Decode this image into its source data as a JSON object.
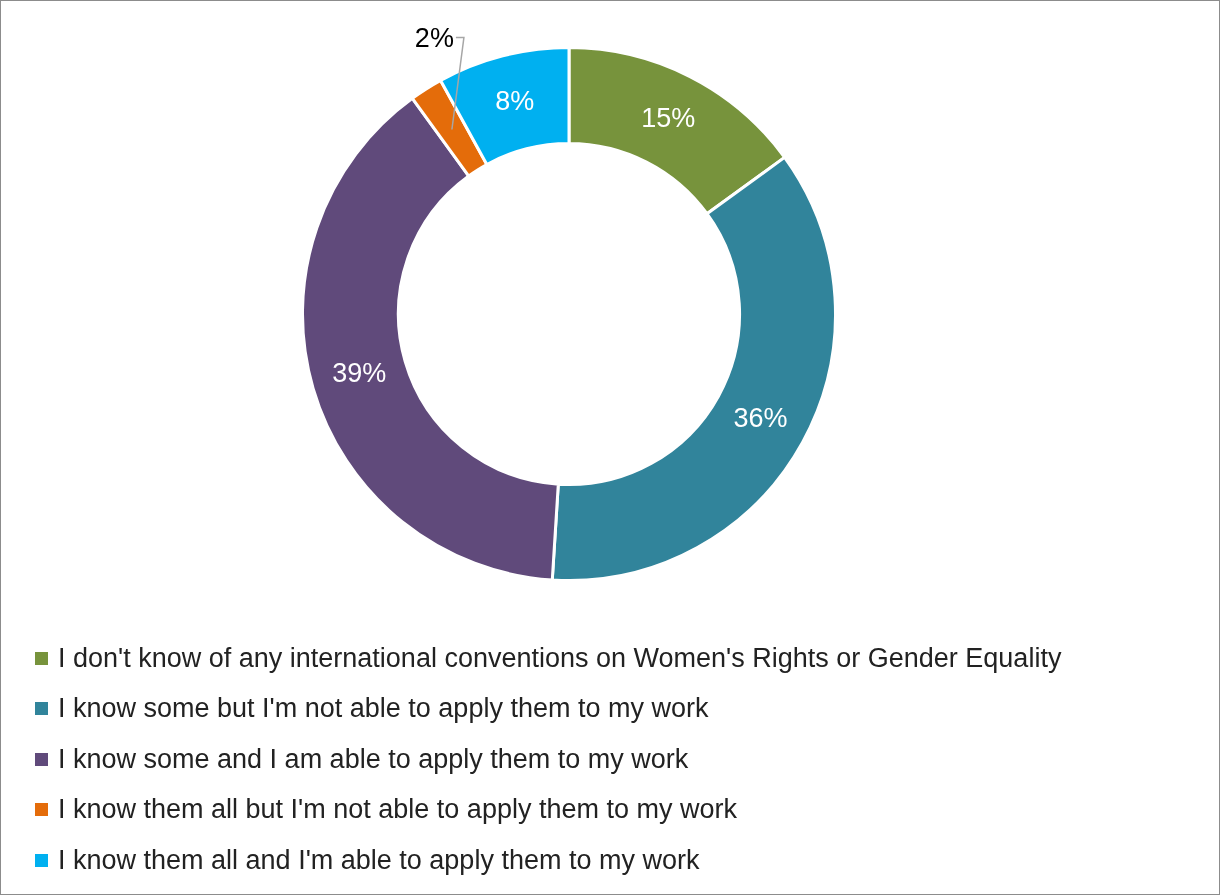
{
  "chart_data": {
    "type": "donut",
    "categories": [
      "I don't know of any international conventions on Women's Rights or Gender Equality",
      "I know some but I'm not able to apply them to my work",
      "I know some and I am able to apply them to my work",
      "I know them all but I'm not able to apply them to my work",
      "I know them all and I'm able to apply them to my work"
    ],
    "values": [
      15,
      36,
      39,
      2,
      8
    ],
    "value_labels": [
      "15%",
      "36%",
      "39%",
      "2%",
      "8%"
    ],
    "colors": [
      "#77933c",
      "#31849b",
      "#604a7b",
      "#e46c0a",
      "#00b0f0"
    ],
    "legend": "bottom"
  }
}
